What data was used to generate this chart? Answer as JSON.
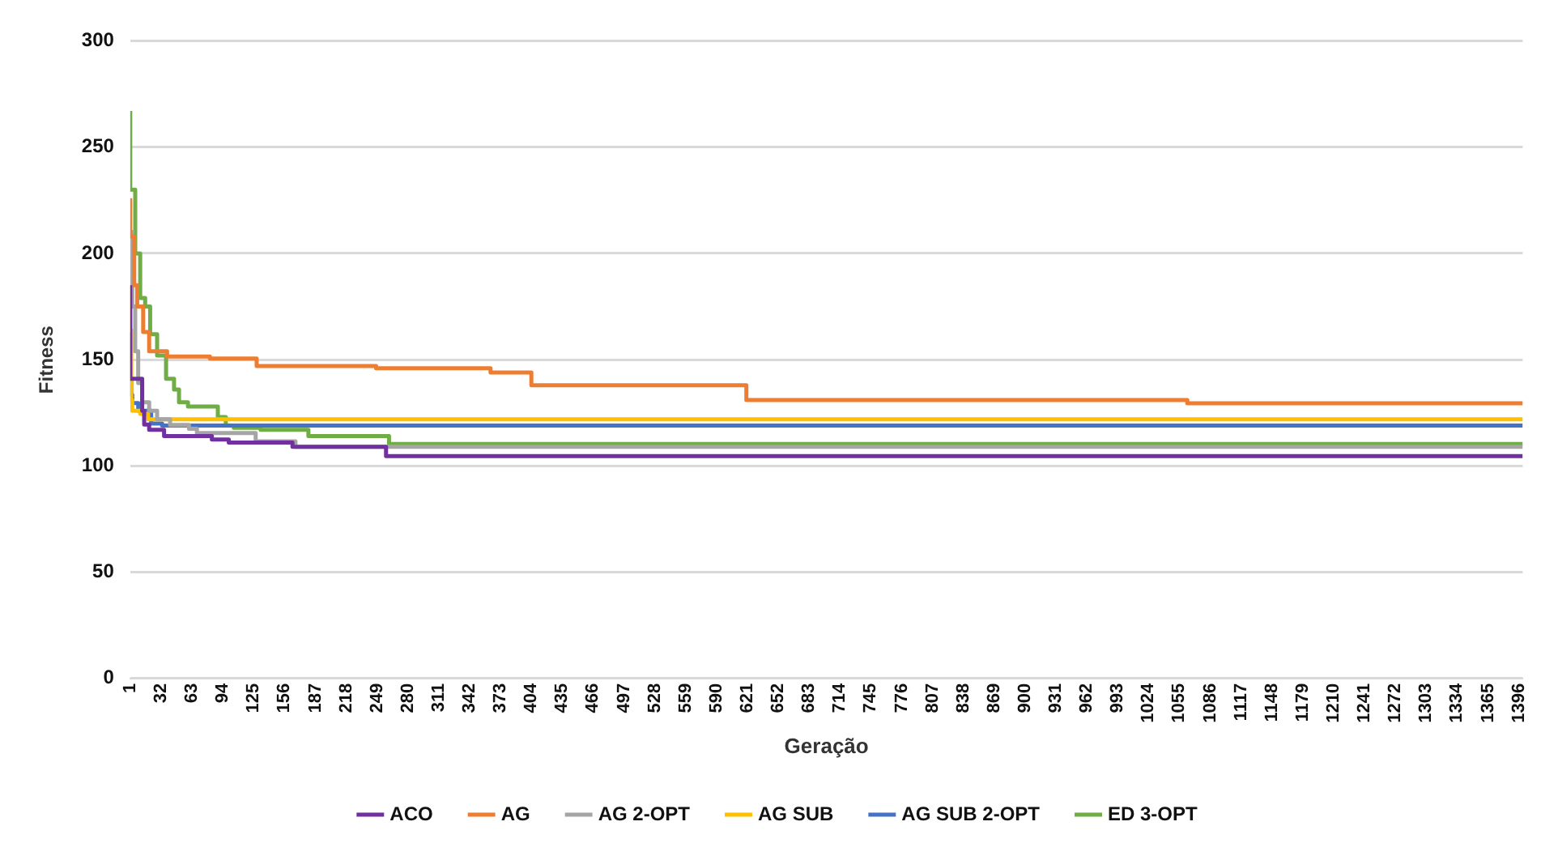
{
  "chart_data": {
    "type": "step",
    "xlabel": "Geração",
    "ylabel": "Fitness",
    "xlim": [
      1,
      1400
    ],
    "xticks": [
      1,
      32,
      63,
      94,
      125,
      156,
      187,
      218,
      249,
      280,
      311,
      342,
      373,
      404,
      435,
      466,
      497,
      528,
      559,
      590,
      621,
      652,
      683,
      714,
      745,
      776,
      807,
      838,
      869,
      900,
      931,
      962,
      993,
      1024,
      1055,
      1086,
      1117,
      1148,
      1179,
      1210,
      1241,
      1272,
      1303,
      1334,
      1365,
      1396
    ],
    "ylim": [
      0,
      300
    ],
    "yticks": [
      0,
      50,
      100,
      150,
      200,
      250,
      300
    ],
    "grid": "y",
    "legend": "bottom",
    "marker": "none",
    "line_style": "solid",
    "series": [
      {
        "name": "ACO",
        "color": "#7030a0",
        "x": [
          1,
          3,
          13,
          15,
          20,
          35,
          83,
          100,
          164,
          258,
          277,
          1400
        ],
        "values": [
          185,
          141,
          141,
          126,
          119.5,
          117,
          114,
          112.4,
          111,
          109,
          104.6,
          104.6
        ]
      },
      {
        "name": "AG",
        "color": "#ed7d31",
        "x": [
          1,
          5,
          8,
          14,
          20,
          38,
          81,
          128,
          248,
          363,
          404,
          620,
          1063,
          1331,
          1400
        ],
        "values": [
          226,
          208,
          185,
          175,
          163,
          154,
          151.5,
          150.5,
          147,
          146,
          144,
          138,
          131,
          129.5,
          129.5
        ]
      },
      {
        "name": "AG 2-OPT",
        "color": "#a5a5a5",
        "x": [
          3,
          6,
          9,
          13,
          20,
          28,
          41,
          60,
          68,
          127,
          167,
          444,
          1400
        ],
        "values": [
          211,
          175,
          154,
          139,
          130,
          126,
          122,
          119.3,
          117.5,
          115.5,
          111.6,
          109,
          109
        ]
      },
      {
        "name": "AG SUB",
        "color": "#ffc000",
        "x": [
          1,
          2,
          3,
          11,
          19,
          140,
          1400
        ],
        "values": [
          185,
          164,
          131,
          126,
          124.5,
          122,
          122
        ]
      },
      {
        "name": "AG SUB 2-OPT",
        "color": "#4472c4",
        "x": [
          1,
          2,
          3,
          9,
          22,
          33,
          1001,
          1400
        ],
        "values": [
          163,
          141,
          133.5,
          129.6,
          126,
          120,
          119,
          119
        ]
      },
      {
        "name": "ED 3-OPT",
        "color": "#70ad47",
        "x": [
          1,
          6,
          11,
          16,
          21,
          28,
          37,
          45,
          50,
          59,
          89,
          97,
          105,
          132,
          180,
          261,
          310,
          1400
        ],
        "values": [
          267,
          230,
          200,
          179,
          175,
          162,
          152,
          141,
          136,
          130,
          128,
          123,
          119,
          118,
          117,
          114,
          110.3,
          110.3
        ]
      }
    ]
  }
}
